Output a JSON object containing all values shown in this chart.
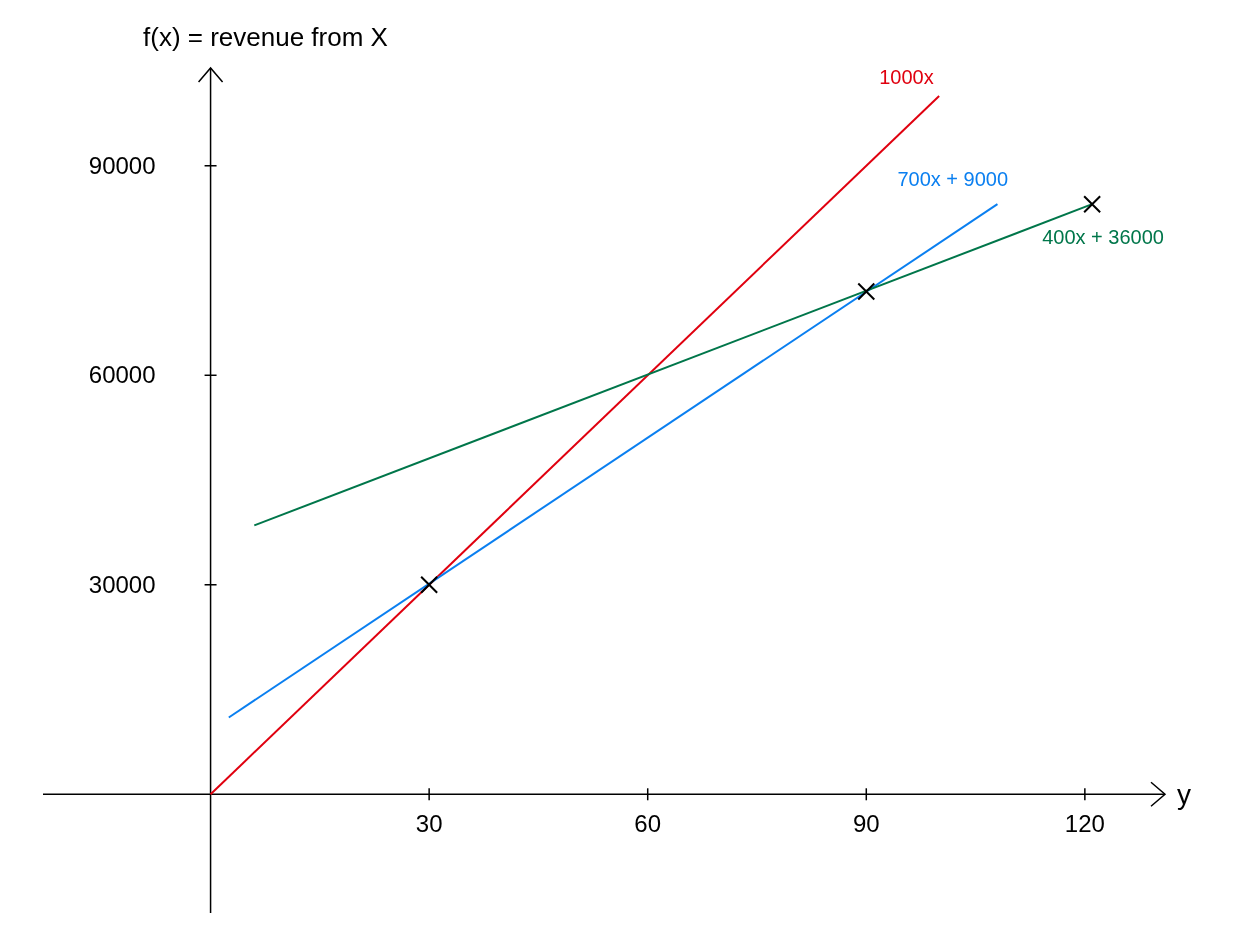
{
  "chart_data": {
    "type": "line",
    "ylabel": "f(x) = revenue from X",
    "xlabel": "y",
    "xlim": [
      -23,
      131
    ],
    "ylim": [
      -17000,
      104000
    ],
    "xticks": [
      30,
      60,
      90,
      120
    ],
    "yticks": [
      30000,
      60000,
      90000
    ],
    "series": [
      {
        "name": "1000x",
        "color": "#e0000f",
        "x": [
          0,
          100
        ],
        "values": [
          0,
          100000
        ]
      },
      {
        "name": "700x + 9000",
        "color": "#0a7ff0",
        "x": [
          2.5,
          108
        ],
        "values": [
          11000,
          84500
        ]
      },
      {
        "name": "400x + 36000",
        "color": "#00764a",
        "x": [
          6,
          121
        ],
        "values": [
          38500,
          84500
        ]
      },
      {
        "type": "scatter",
        "marker": "cross",
        "color": "#000000",
        "x": [
          30,
          90,
          121
        ],
        "values": [
          30000,
          72000,
          84500
        ]
      }
    ]
  }
}
